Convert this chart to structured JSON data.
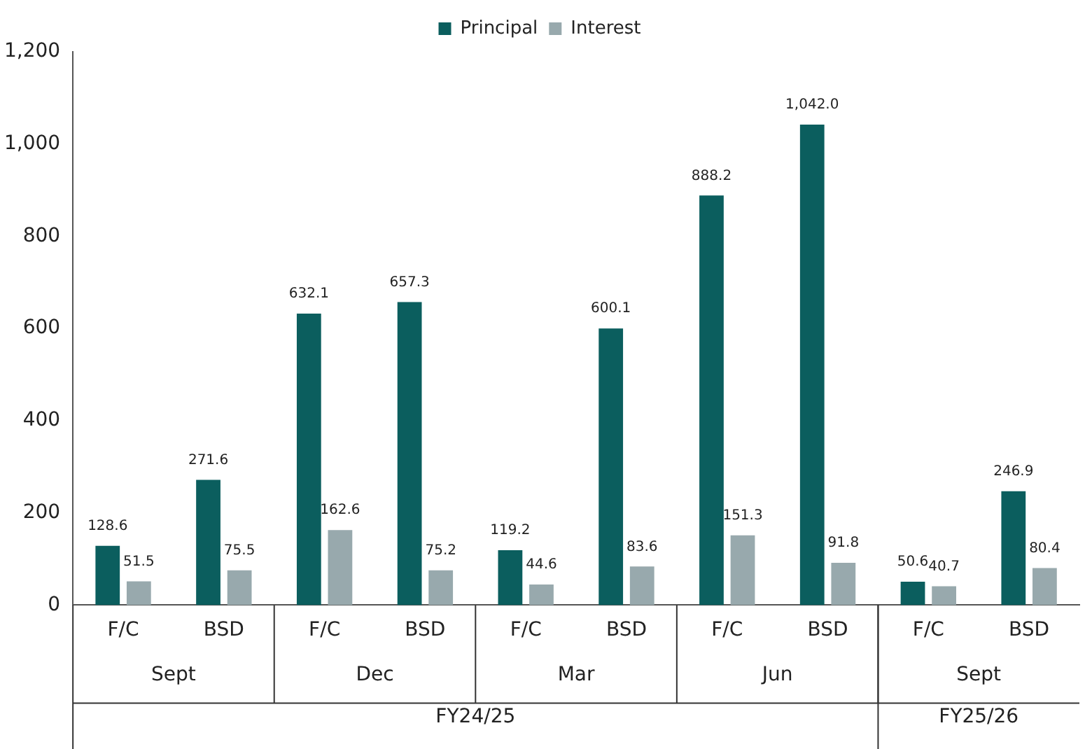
{
  "chart_data": {
    "type": "bar",
    "categories": [
      "F/C",
      "BSD",
      "F/C",
      "BSD",
      "F/C",
      "BSD",
      "F/C",
      "BSD",
      "F/C",
      "BSD"
    ],
    "series": [
      {
        "name": "Principal",
        "color": "#0b5e5e",
        "values": [
          128.6,
          271.6,
          632.1,
          657.3,
          119.2,
          600.1,
          888.2,
          1042.0,
          50.6,
          246.9
        ],
        "value_labels": [
          "128.6",
          "271.6",
          "632.1",
          "657.3",
          "119.2",
          "600.1",
          "888.2",
          "1,042.0",
          "50.6",
          "246.9"
        ]
      },
      {
        "name": "Interest",
        "color": "#98a9ad",
        "values": [
          51.5,
          75.5,
          162.6,
          75.2,
          44.6,
          83.6,
          151.3,
          91.8,
          40.7,
          80.4
        ],
        "value_labels": [
          "51.5",
          "75.5",
          "162.6",
          "75.2",
          "44.6",
          "83.6",
          "151.3",
          "91.8",
          "40.7",
          "80.4"
        ]
      }
    ],
    "annotations": [
      "Sept",
      "Dec",
      "Mar",
      "Jun",
      "Sept",
      "FY24/25",
      "FY25/26"
    ],
    "ylim": [
      0,
      1200
    ],
    "yticks": [
      {
        "value": 0,
        "label": "0"
      },
      {
        "value": 200,
        "label": "200"
      },
      {
        "value": 400,
        "label": "400"
      },
      {
        "value": 600,
        "label": "600"
      },
      {
        "value": 800,
        "label": "800"
      },
      {
        "value": 1000,
        "label": "1,000"
      },
      {
        "value": 1200,
        "label": "1,200"
      }
    ],
    "grid": false,
    "legend": "top"
  }
}
